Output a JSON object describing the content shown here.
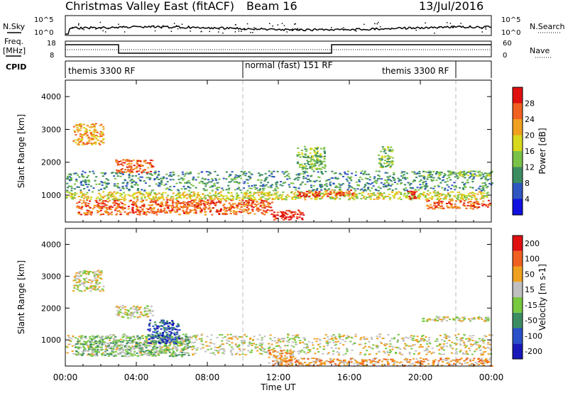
{
  "header": {
    "title": "Christmas Valley East (fitACF)",
    "beam": "Beam 16",
    "date": "13/Jul/2016"
  },
  "sky_panel": {
    "left_label": "N.Sky",
    "right_label": "N.Search",
    "left_ticks": [
      "10^5",
      "10^0"
    ],
    "right_ticks": [
      "10^5",
      "10^0"
    ]
  },
  "freq_panel": {
    "left_label_1": "Freq.",
    "left_label_2": "[MHz]",
    "right_label": "Nave",
    "left_ticks": [
      "18",
      "8"
    ],
    "right_ticks": [
      "60",
      "0"
    ]
  },
  "cpid": {
    "label": "CPID",
    "segments": [
      {
        "name": "themis 3300 RF",
        "start_hour": 0,
        "end_hour": 10
      },
      {
        "name": "normal (fast) 151 RF",
        "start_hour": 10,
        "end_hour": 22
      },
      {
        "name": "themis 3300 RF",
        "start_hour": 22,
        "end_hour": 24
      }
    ],
    "segment_labels": [
      "themis 3300 RF",
      "normal (fast) 151 RF",
      "themis 3300 RF"
    ]
  },
  "chart_data": [
    {
      "type": "heatmap",
      "parameter": "Power",
      "ylabel": "Slant Range [km]",
      "ylim": [
        180,
        4500
      ],
      "y_ticks": [
        "1000",
        "2000",
        "3000",
        "4000"
      ],
      "colorbar": {
        "label": "Power [dB]",
        "ticks": [
          "4",
          "8",
          "12",
          "16",
          "20",
          "24",
          "28"
        ],
        "colors": [
          "#1010e0",
          "#2f55c0",
          "#3c8c62",
          "#7ac247",
          "#d8d81e",
          "#f0a020",
          "#f06020",
          "#e01010"
        ]
      },
      "regions": [
        {
          "t0": 0.6,
          "t1": 11.6,
          "r0": 420,
          "r1": 880,
          "level": 6
        },
        {
          "t0": 0.0,
          "t1": 23.8,
          "r0": 880,
          "r1": 1120,
          "level": 4
        },
        {
          "t0": 11.6,
          "t1": 13.4,
          "r0": 260,
          "r1": 560,
          "level": 7
        },
        {
          "t0": 13.0,
          "t1": 14.4,
          "r0": 950,
          "r1": 1150,
          "level": 7
        },
        {
          "t0": 14.6,
          "t1": 16.2,
          "r0": 980,
          "r1": 1180,
          "level": 6
        },
        {
          "t0": 19.2,
          "t1": 19.8,
          "r0": 900,
          "r1": 1150,
          "level": 7
        },
        {
          "t0": 20.3,
          "t1": 23.9,
          "r0": 600,
          "r1": 860,
          "level": 6
        },
        {
          "t0": 0.0,
          "t1": 24.0,
          "r0": 1150,
          "r1": 1750,
          "level": 2
        },
        {
          "t0": 0.4,
          "t1": 2.1,
          "r0": 2550,
          "r1": 3200,
          "level": 5
        },
        {
          "t0": 2.8,
          "t1": 4.9,
          "r0": 1700,
          "r1": 2100,
          "level": 6
        },
        {
          "t0": 13.0,
          "t1": 14.6,
          "r0": 1800,
          "r1": 2500,
          "level": 3
        },
        {
          "t0": 17.6,
          "t1": 18.4,
          "r0": 1850,
          "r1": 2500,
          "level": 3
        },
        {
          "t0": 20.0,
          "t1": 24.0,
          "r0": 1600,
          "r1": 1750,
          "level": 3
        }
      ]
    },
    {
      "type": "heatmap",
      "parameter": "Velocity",
      "ylabel": "Slant Range [km]",
      "ylim": [
        180,
        4500
      ],
      "y_ticks": [
        "1000",
        "2000",
        "3000",
        "4000"
      ],
      "colorbar": {
        "label": "Velocity [m s-1]",
        "ticks": [
          "200",
          "100",
          "50",
          "15",
          "-15",
          "-50",
          "-100",
          "-200"
        ],
        "colors": [
          "#1818b8",
          "#2850c8",
          "#3c8c62",
          "#78c840",
          "#c0c0c0",
          "#f0a020",
          "#f06020",
          "#e01010"
        ]
      },
      "regions": [
        {
          "t0": 0.0,
          "t1": 24.0,
          "r0": 550,
          "r1": 1200,
          "level": 4
        },
        {
          "t0": 0.5,
          "t1": 7.0,
          "r0": 500,
          "r1": 1150,
          "level": 3
        },
        {
          "t0": 4.6,
          "t1": 6.4,
          "r0": 900,
          "r1": 1650,
          "level": 1
        },
        {
          "t0": 11.4,
          "t1": 12.8,
          "r0": 200,
          "r1": 700,
          "level": 5
        },
        {
          "t0": 12.0,
          "t1": 24.0,
          "r0": 200,
          "r1": 450,
          "level": 5
        },
        {
          "t0": 0.4,
          "t1": 2.1,
          "r0": 2550,
          "r1": 3200,
          "level": 4
        },
        {
          "t0": 2.8,
          "t1": 4.9,
          "r0": 1700,
          "r1": 2100,
          "level": 4
        },
        {
          "t0": 20.0,
          "t1": 24.0,
          "r0": 1600,
          "r1": 1750,
          "level": 4
        }
      ]
    }
  ],
  "x_axis": {
    "label": "Time UT",
    "ticks": [
      "00:00",
      "04:00",
      "08:00",
      "12:00",
      "16:00",
      "20:00",
      "00:00"
    ],
    "range_hours": [
      0,
      24
    ]
  },
  "frequency_series": [
    {
      "start_hour": 0,
      "end_hour": 3,
      "value": "high"
    },
    {
      "start_hour": 3,
      "end_hour": 15,
      "value": "low"
    },
    {
      "start_hour": 15,
      "end_hour": 24,
      "value": "high"
    }
  ]
}
